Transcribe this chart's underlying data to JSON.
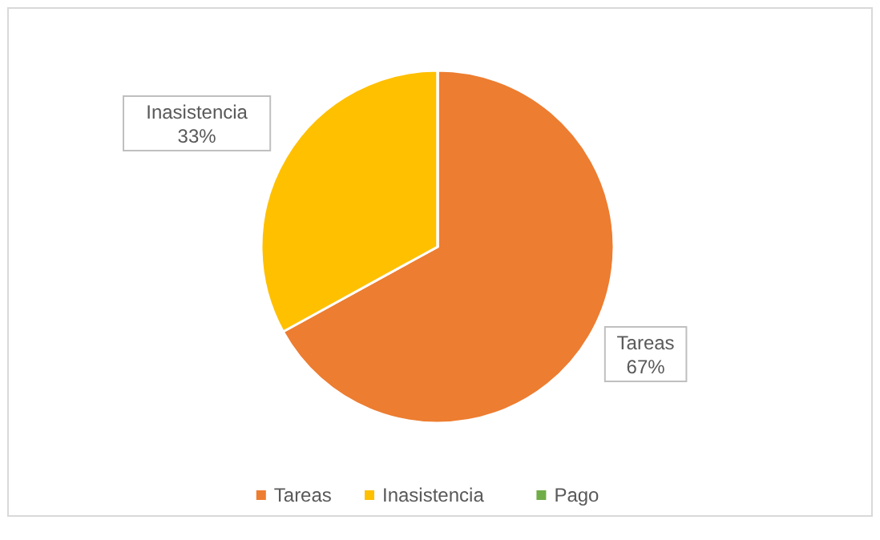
{
  "chart_data": {
    "type": "pie",
    "categories": [
      "Tareas",
      "Inasistencia",
      "Pago"
    ],
    "values": [
      67,
      33,
      0
    ],
    "colors": [
      "#ed7d31",
      "#ffc000",
      "#70ad47"
    ],
    "value_labels": [
      "67%",
      "33%",
      null
    ],
    "legend": "bottom"
  }
}
